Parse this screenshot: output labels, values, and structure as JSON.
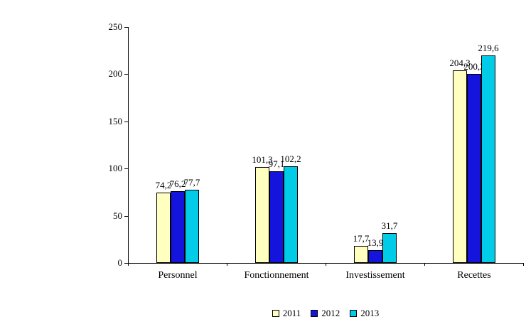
{
  "chart_data": {
    "type": "bar",
    "title": "",
    "categories": [
      "Personnel",
      "Fonctionnement",
      "Investissement",
      "Recettes"
    ],
    "series": [
      {
        "name": "2011",
        "color": "#ffffc0",
        "values": [
          74.2,
          101.3,
          17.7,
          204.3
        ],
        "value_labels": [
          "74,2",
          "101,3",
          "17,7",
          "204,3"
        ]
      },
      {
        "name": "2012",
        "color": "#1414dd",
        "values": [
          76.2,
          97.1,
          13.9,
          200.3
        ],
        "value_labels": [
          "76,2",
          "97,1",
          "13,9",
          "200,3"
        ]
      },
      {
        "name": "2013",
        "color": "#00cce8",
        "values": [
          77.7,
          102.2,
          31.7,
          219.6
        ],
        "value_labels": [
          "77,7",
          "102,2",
          "31,7",
          "219,6"
        ]
      }
    ],
    "xlabel": "",
    "ylabel": "",
    "ylim": [
      0,
      250
    ],
    "yticks": [
      0,
      50,
      100,
      150,
      200,
      250
    ],
    "ytick_labels": [
      "0",
      "50",
      "100",
      "150",
      "200",
      "250"
    ],
    "grid": false,
    "legend_position": "bottom",
    "decimal_separator": ","
  }
}
